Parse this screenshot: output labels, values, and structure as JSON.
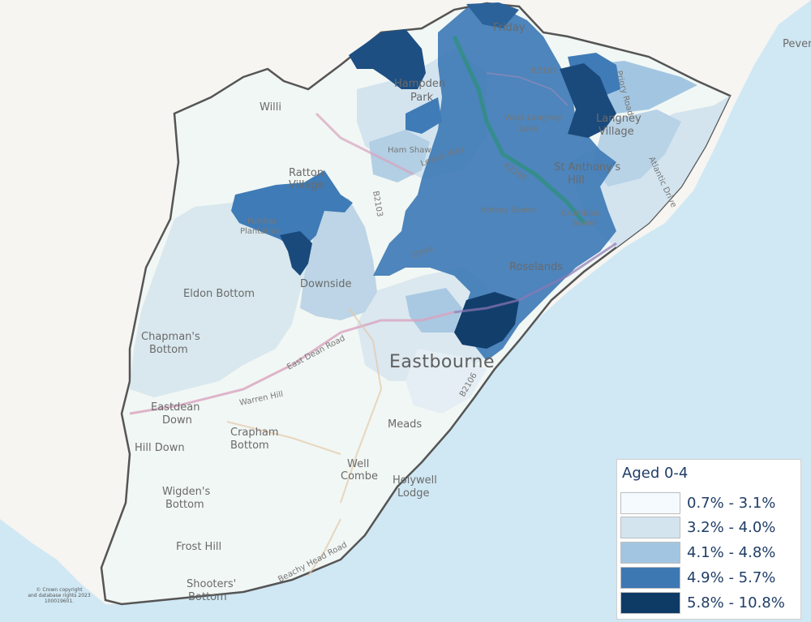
{
  "legend": {
    "title": "Aged 0-4",
    "classes": [
      {
        "label": "0.7% - 3.1%",
        "color": "#f4fafd"
      },
      {
        "label": "3.2% - 4.0%",
        "color": "#d3e4ef"
      },
      {
        "label": "4.1% - 4.8%",
        "color": "#a2c6e2"
      },
      {
        "label": "4.9% - 5.7%",
        "color": "#3d78b3"
      },
      {
        "label": "5.8% - 10.8%",
        "color": "#0e3a66"
      }
    ]
  },
  "places": {
    "friday": "Friday",
    "hampden": "Hampden",
    "park": "Park",
    "willi": "Willi",
    "b2191": "B2191",
    "west_langney": "West Langney",
    "lake": "Lake",
    "langney": "Langney",
    "village": "Village",
    "ham_shaw": "Ham Shaw",
    "levels_way": "Levels Way",
    "a2290": "A2290",
    "st_anthonys": "St Anthony's",
    "hill": "Hill",
    "ratton": "Ratton",
    "ratton_village": "Village",
    "further": "Further",
    "plantation": "Plantation",
    "horsey_sewer": "Horsey Sewer",
    "crumbles": "Crumbles",
    "sewer": "Sewer",
    "roselands": "Roselands",
    "downside": "Downside",
    "eldon_bottom": "Eldon Bottom",
    "chapmans": "Chapman's",
    "chapmans_bottom": "Bottom",
    "eastbourne": "Eastbourne",
    "eastdean_road": "East Dean Road",
    "eastdean": "Eastdean",
    "down": "Down",
    "warren_hill": "Warren Hill",
    "crapham": "Crapham",
    "crapham_bottom": "Bottom",
    "meads": "Meads",
    "hill_down": "Hill Down",
    "well": "Well",
    "combe": "Combe",
    "holywell": "Holywell",
    "lodge": "Lodge",
    "wigdens": "Wigden's",
    "wigdens_bottom": "Bottom",
    "frost_hill": "Frost Hill",
    "shooters": "Shooters'",
    "shooters_bottom": "Bottom",
    "pevensey": "Peven",
    "priory_road": "Priory Road",
    "atlantic_drive": "Atlantic Drive",
    "beachy_head_road": "Beachy Head Road",
    "b2103": "B2103",
    "drive": "Drive",
    "b2106": "B2106"
  },
  "copyright": {
    "line1": "© Crown copyright",
    "line2": "and database rights 2023",
    "line3": "100019601."
  }
}
